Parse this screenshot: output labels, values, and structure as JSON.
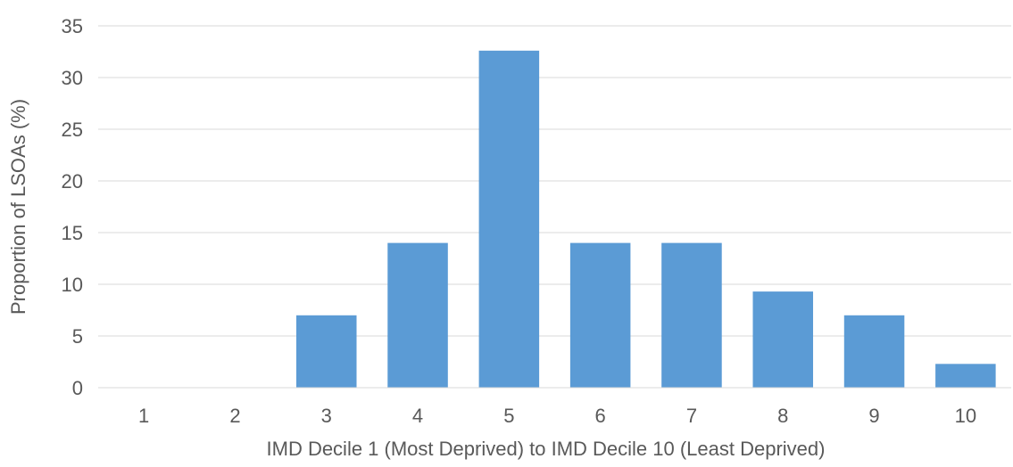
{
  "chart_data": {
    "type": "bar",
    "categories": [
      "1",
      "2",
      "3",
      "4",
      "5",
      "6",
      "7",
      "8",
      "9",
      "10"
    ],
    "values": [
      0,
      0,
      7,
      14,
      32.6,
      14,
      14,
      9.3,
      7,
      2.3
    ],
    "xlabel": "IMD Decile 1 (Most Deprived) to IMD Decile 10 (Least Deprived)",
    "ylabel": "Proportion of LSOAs (%)",
    "ylim": [
      0,
      35
    ],
    "yticks": [
      0,
      5,
      10,
      15,
      20,
      25,
      30,
      35
    ],
    "grid": true,
    "bar_color": "#5b9bd5",
    "legend": "none"
  }
}
